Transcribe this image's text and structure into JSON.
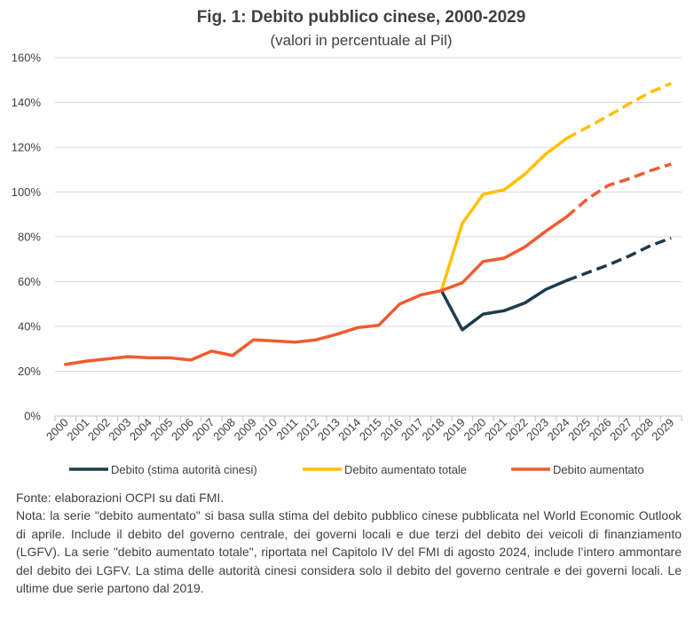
{
  "chart_data": {
    "type": "line",
    "title": "Fig. 1: Debito pubblico cinese, 2000-2029",
    "subtitle": "(valori in percentuale al Pil)",
    "xlabel": "",
    "ylabel": "",
    "ylim": [
      0,
      160
    ],
    "yticks": [
      "0%",
      "20%",
      "40%",
      "60%",
      "80%",
      "100%",
      "120%",
      "140%",
      "160%"
    ],
    "ytick_values": [
      0,
      20,
      40,
      60,
      80,
      100,
      120,
      140,
      160
    ],
    "x": [
      "2000",
      "2001",
      "2002",
      "2003",
      "2004",
      "2005",
      "2006",
      "2007",
      "2008",
      "2009",
      "2010",
      "2011",
      "2012",
      "2013",
      "2014",
      "2015",
      "2016",
      "2017",
      "2018",
      "2019",
      "2020",
      "2021",
      "2022",
      "2023",
      "2024",
      "2025",
      "2026",
      "2027",
      "2028",
      "2029"
    ],
    "grid": "horizontal",
    "legend_position": "bottom",
    "projection_from": "2024",
    "series": [
      {
        "name": "Debito (stima autorità cinesi)",
        "color": "#1f3a4d",
        "start_index": 18,
        "values": [
          null,
          null,
          null,
          null,
          null,
          null,
          null,
          null,
          null,
          null,
          null,
          null,
          null,
          null,
          null,
          null,
          null,
          null,
          56,
          38.5,
          45.5,
          47,
          50.5,
          56.5,
          60.5,
          64,
          67.5,
          71.5,
          76,
          79.5
        ]
      },
      {
        "name": "Debito aumentato totale",
        "color": "#ffc000",
        "start_index": 18,
        "values": [
          null,
          null,
          null,
          null,
          null,
          null,
          null,
          null,
          null,
          null,
          null,
          null,
          null,
          null,
          null,
          null,
          null,
          null,
          56,
          86,
          99,
          101,
          108,
          117,
          124,
          129,
          134,
          139.5,
          144.5,
          148.5
        ]
      },
      {
        "name": "Debito aumentato",
        "color": "#f15a30",
        "start_index": 0,
        "values": [
          23,
          24.5,
          25.5,
          26.5,
          26,
          26,
          25,
          29,
          27,
          34,
          33.5,
          33,
          34,
          36.5,
          39.5,
          40.5,
          50,
          54,
          56,
          59.5,
          69,
          70.5,
          75.5,
          82.5,
          89,
          97,
          103,
          106,
          109.5,
          112.5
        ]
      }
    ]
  },
  "notes": {
    "source": "Fonte: elaborazioni OCPI su dati FMI.",
    "note": "Nota: la serie \"debito aumentato\" si basa sulla stima del debito pubblico cinese pubblicata nel World Economic Outlook di aprile. Include il debito del governo centrale, dei governi locali e due terzi del debito dei veicoli di finanziamento (LGFV). La serie \"debito aumentato totale\", riportata nel Capitolo IV del FMI di agosto 2024, include l’intero ammontare del debito dei LGFV. La stima delle autorità cinesi considera solo il debito del governo centrale e dei governi locali. Le ultime due serie partono dal 2019."
  }
}
